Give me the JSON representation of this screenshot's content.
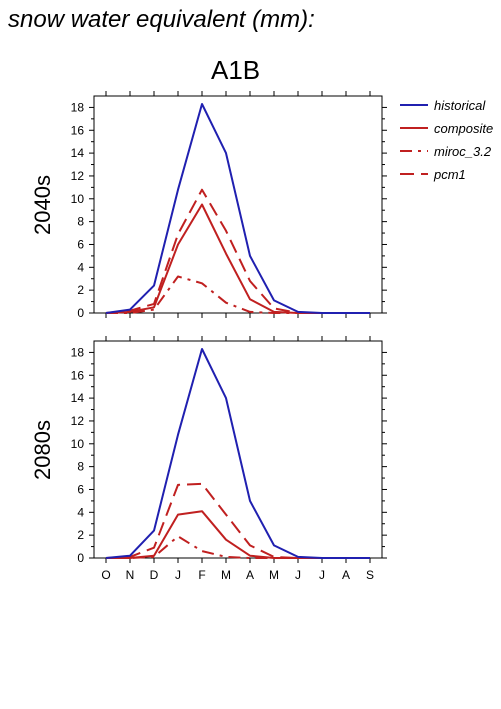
{
  "title": "snow water equivalent (mm):",
  "subtitle": "A1B",
  "colors": {
    "historical": "#2020b0",
    "scenario": "#c02020"
  },
  "legend": [
    {
      "name": "historical",
      "color": "#2020b0",
      "dash": "solid"
    },
    {
      "name": "composite",
      "color": "#c02020",
      "dash": "solid"
    },
    {
      "name": "miroc_3.2",
      "color": "#c02020",
      "dash": "dashdot"
    },
    {
      "name": "pcm1",
      "color": "#c02020",
      "dash": "dashed"
    }
  ],
  "chart_data": [
    {
      "type": "line",
      "title": "2040s",
      "xlabel": "",
      "ylabel": "",
      "categories": [
        "O",
        "N",
        "D",
        "J",
        "F",
        "M",
        "A",
        "M",
        "J",
        "J",
        "A",
        "S"
      ],
      "ylim": [
        0,
        19
      ],
      "yticks": [
        0,
        2,
        4,
        6,
        8,
        10,
        12,
        14,
        16,
        18
      ],
      "grid": false,
      "legend_position": "right",
      "series": [
        {
          "name": "historical",
          "values": [
            0,
            0.3,
            2.4,
            10.8,
            18.3,
            14.0,
            5.0,
            1.1,
            0.1,
            0,
            0,
            0
          ]
        },
        {
          "name": "composite",
          "values": [
            0,
            0.1,
            0.5,
            6.0,
            9.5,
            5.2,
            1.2,
            0.1,
            0,
            0,
            0,
            0
          ]
        },
        {
          "name": "miroc_3.2",
          "values": [
            0,
            0,
            0.3,
            3.2,
            2.6,
            0.9,
            0.1,
            0,
            0,
            0,
            0,
            0
          ]
        },
        {
          "name": "pcm1",
          "values": [
            0,
            0.2,
            0.8,
            6.9,
            10.8,
            7.2,
            2.8,
            0.4,
            0,
            0,
            0,
            0
          ]
        }
      ]
    },
    {
      "type": "line",
      "title": "2080s",
      "xlabel": "",
      "ylabel": "",
      "categories": [
        "O",
        "N",
        "D",
        "J",
        "F",
        "M",
        "A",
        "M",
        "J",
        "J",
        "A",
        "S"
      ],
      "ylim": [
        0,
        19
      ],
      "yticks": [
        0,
        2,
        4,
        6,
        8,
        10,
        12,
        14,
        16,
        18
      ],
      "grid": false,
      "legend_position": "right",
      "series": [
        {
          "name": "historical",
          "values": [
            0,
            0.2,
            2.4,
            10.8,
            18.3,
            14.0,
            5.0,
            1.1,
            0.1,
            0,
            0,
            0
          ]
        },
        {
          "name": "composite",
          "values": [
            0,
            0,
            0.2,
            3.8,
            4.1,
            1.6,
            0.2,
            0,
            0,
            0,
            0,
            0
          ]
        },
        {
          "name": "miroc_3.2",
          "values": [
            0,
            0,
            0.1,
            1.9,
            0.6,
            0.1,
            0,
            0,
            0,
            0,
            0,
            0
          ]
        },
        {
          "name": "pcm1",
          "values": [
            0,
            0.1,
            0.9,
            6.4,
            6.5,
            3.8,
            1.1,
            0.1,
            0,
            0,
            0,
            0
          ]
        }
      ]
    }
  ]
}
